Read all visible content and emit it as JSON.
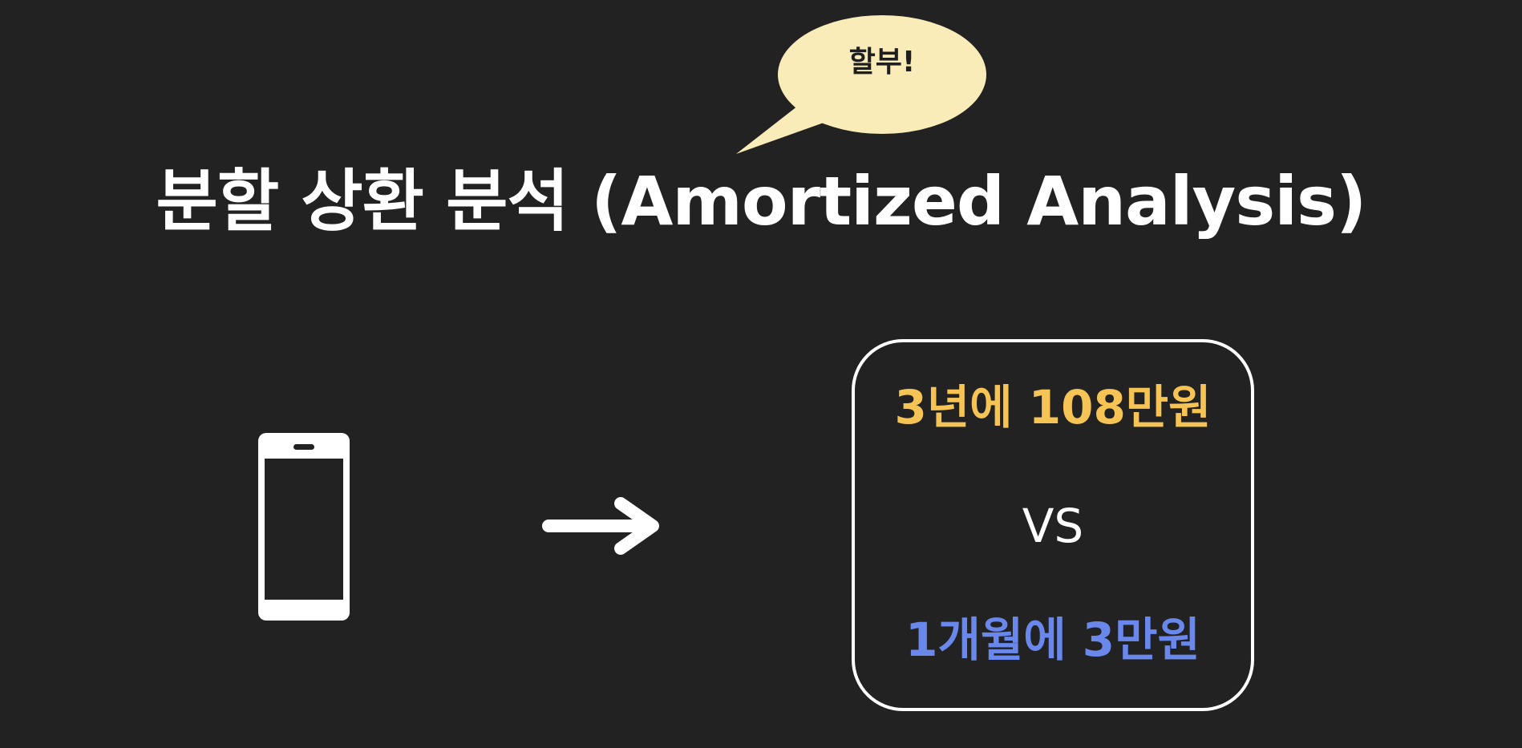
{
  "slide": {
    "bubble_text": "할부!",
    "title": "분할 상환 분석 (Amortized Analysis)",
    "comparison": {
      "option_a": "3년에 108만원",
      "vs": "VS",
      "option_b": "1개월에 3만원"
    },
    "icons": {
      "speech_bubble": "speech-bubble-icon",
      "phone": "smartphone-icon",
      "arrow": "arrow-right-icon"
    }
  },
  "colors": {
    "background": "#222222",
    "bubble_fill": "#faecb8",
    "title": "#ffffff",
    "option_a": "#f5c454",
    "option_b": "#6a88ec",
    "box_border": "#ffffff"
  }
}
